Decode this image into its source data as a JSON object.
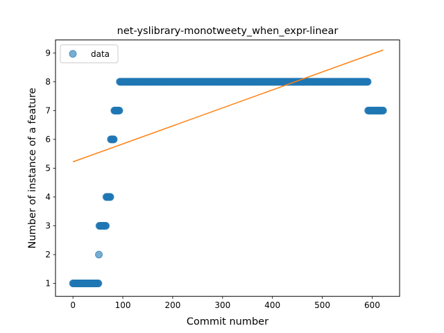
{
  "chart_data": {
    "type": "scatter",
    "title": "net-yslibrary-monotweety_when_expr-linear",
    "xlabel": "Commit number",
    "ylabel": "Number of instance of a feature",
    "xlim": [
      -35,
      655
    ],
    "ylim": [
      0.55,
      9.45
    ],
    "xticks": [
      0,
      100,
      200,
      300,
      400,
      500,
      600
    ],
    "yticks": [
      1,
      2,
      3,
      4,
      5,
      6,
      7,
      8,
      9
    ],
    "grid": false,
    "legend": {
      "placement": "top-left",
      "entries": [
        "data"
      ]
    },
    "colors": {
      "data": "#1f77b4",
      "fit": "#ff7f0e"
    },
    "series": [
      {
        "name": "data",
        "kind": "scatter",
        "segments": [
          {
            "x_start": 0,
            "x_end": 51,
            "y": 1
          },
          {
            "x_start": 52,
            "x_end": 52,
            "y": 2
          },
          {
            "x_start": 53,
            "x_end": 66,
            "y": 3
          },
          {
            "x_start": 67,
            "x_end": 75,
            "y": 4
          },
          {
            "x_start": 76,
            "x_end": 82,
            "y": 6
          },
          {
            "x_start": 83,
            "x_end": 93,
            "y": 7
          },
          {
            "x_start": 94,
            "x_end": 591,
            "y": 8
          },
          {
            "x_start": 592,
            "x_end": 622,
            "y": 7
          }
        ]
      },
      {
        "name": "",
        "kind": "line",
        "x": [
          0,
          622
        ],
        "y": [
          5.22,
          9.1
        ]
      }
    ]
  }
}
